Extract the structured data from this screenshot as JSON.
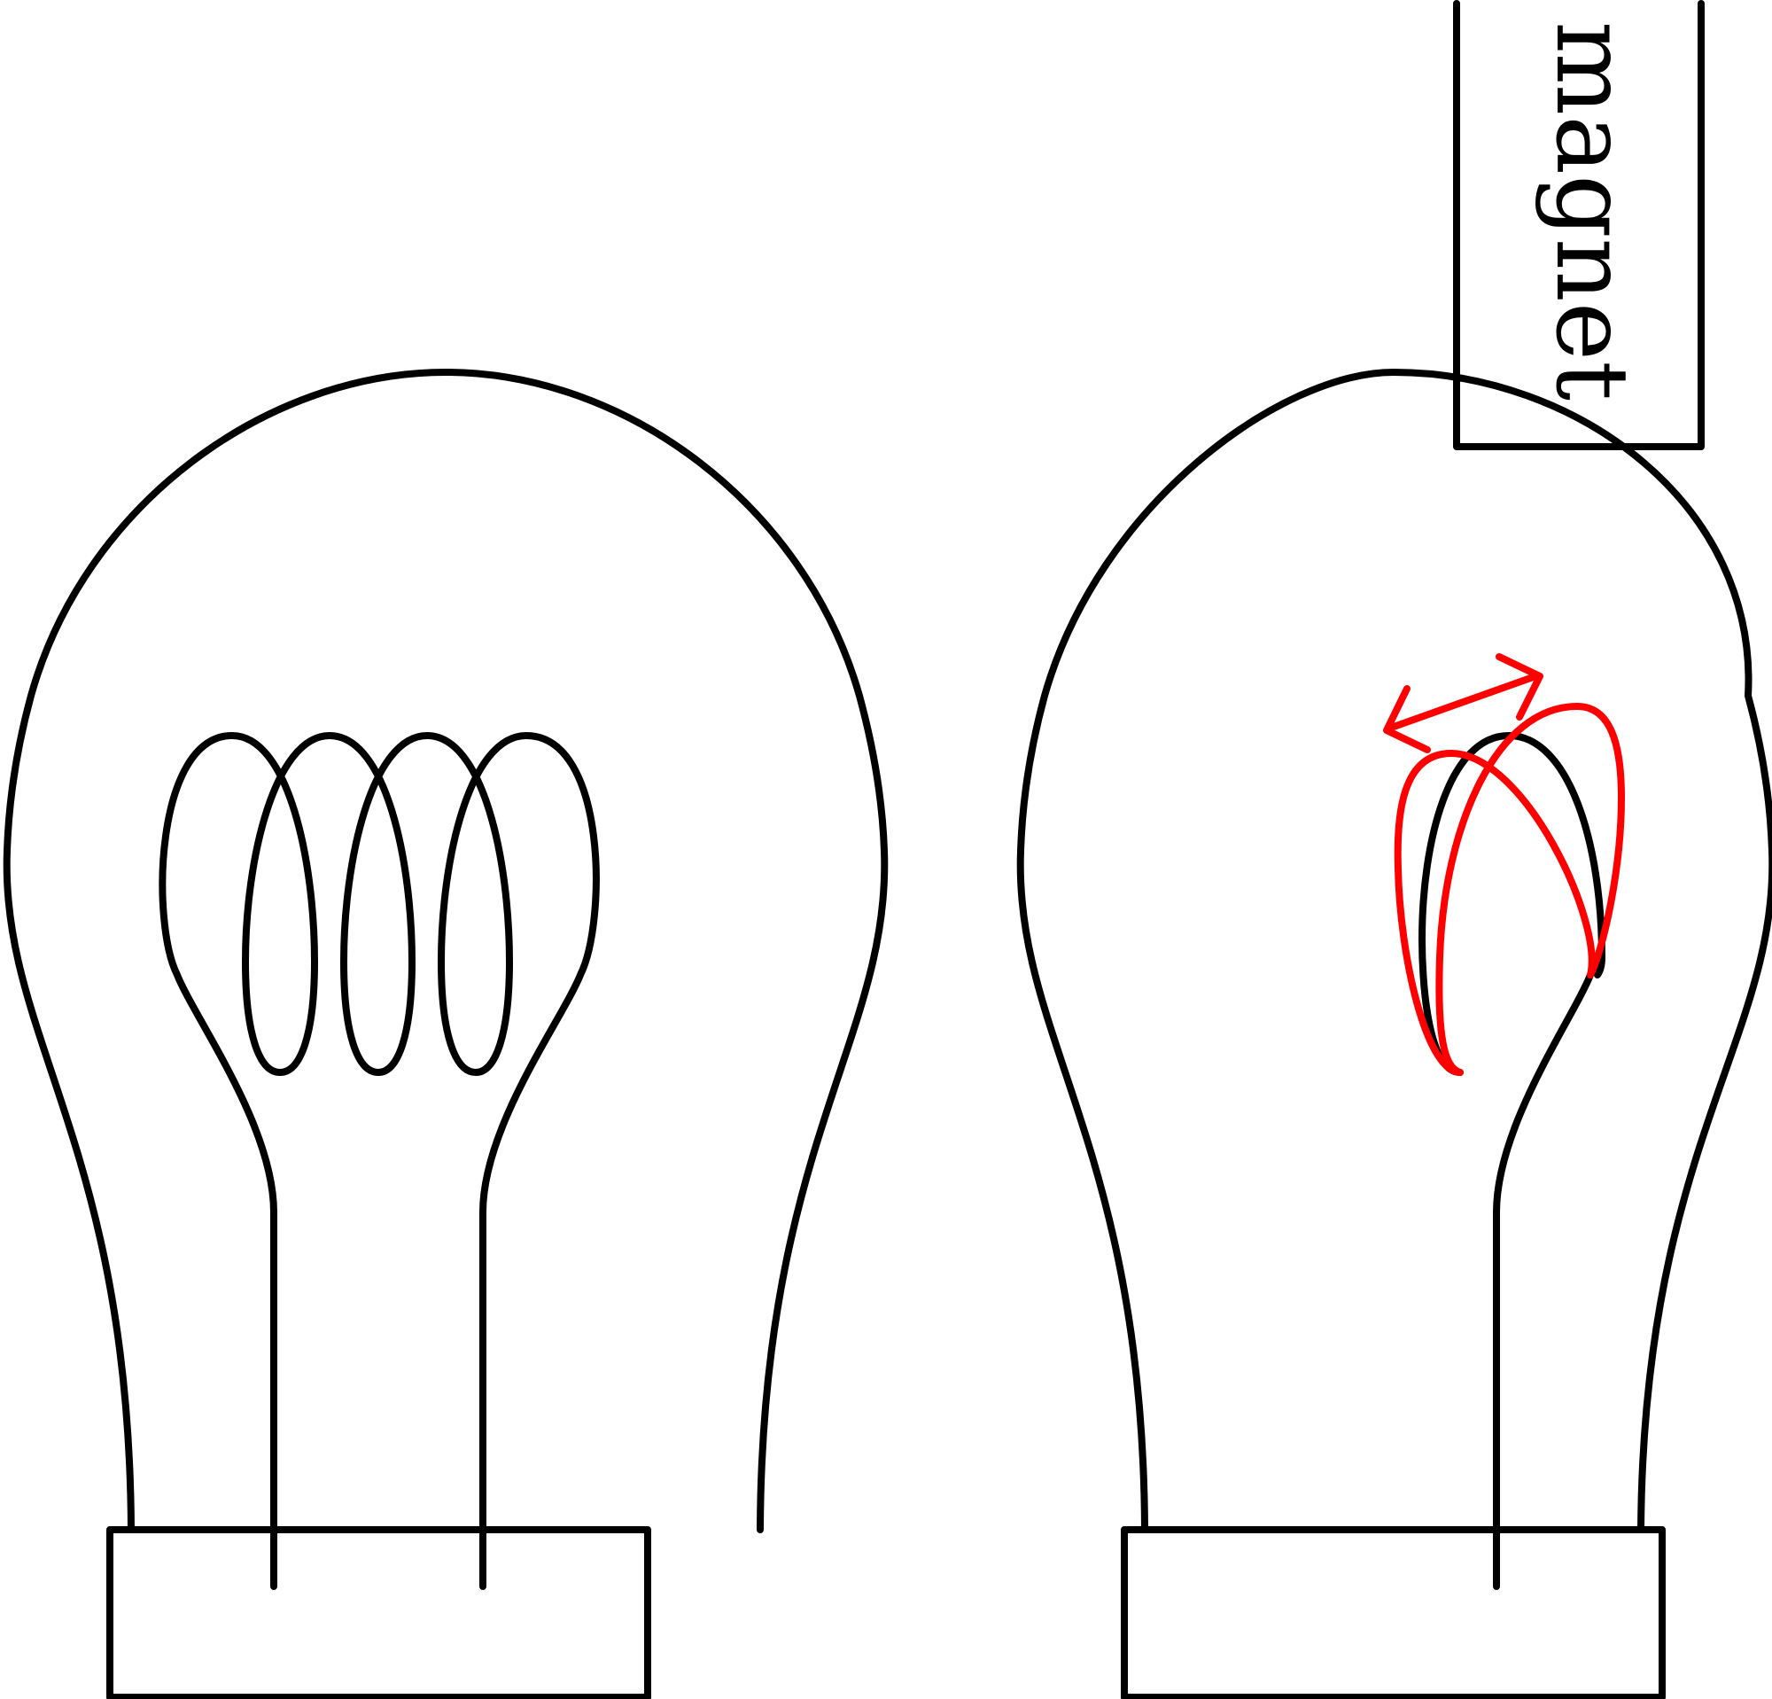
{
  "magnet": {
    "label": "magnet"
  },
  "colors": {
    "outline": "#000000",
    "deflected_filament": "#ff0000",
    "background": "#ffffff"
  }
}
